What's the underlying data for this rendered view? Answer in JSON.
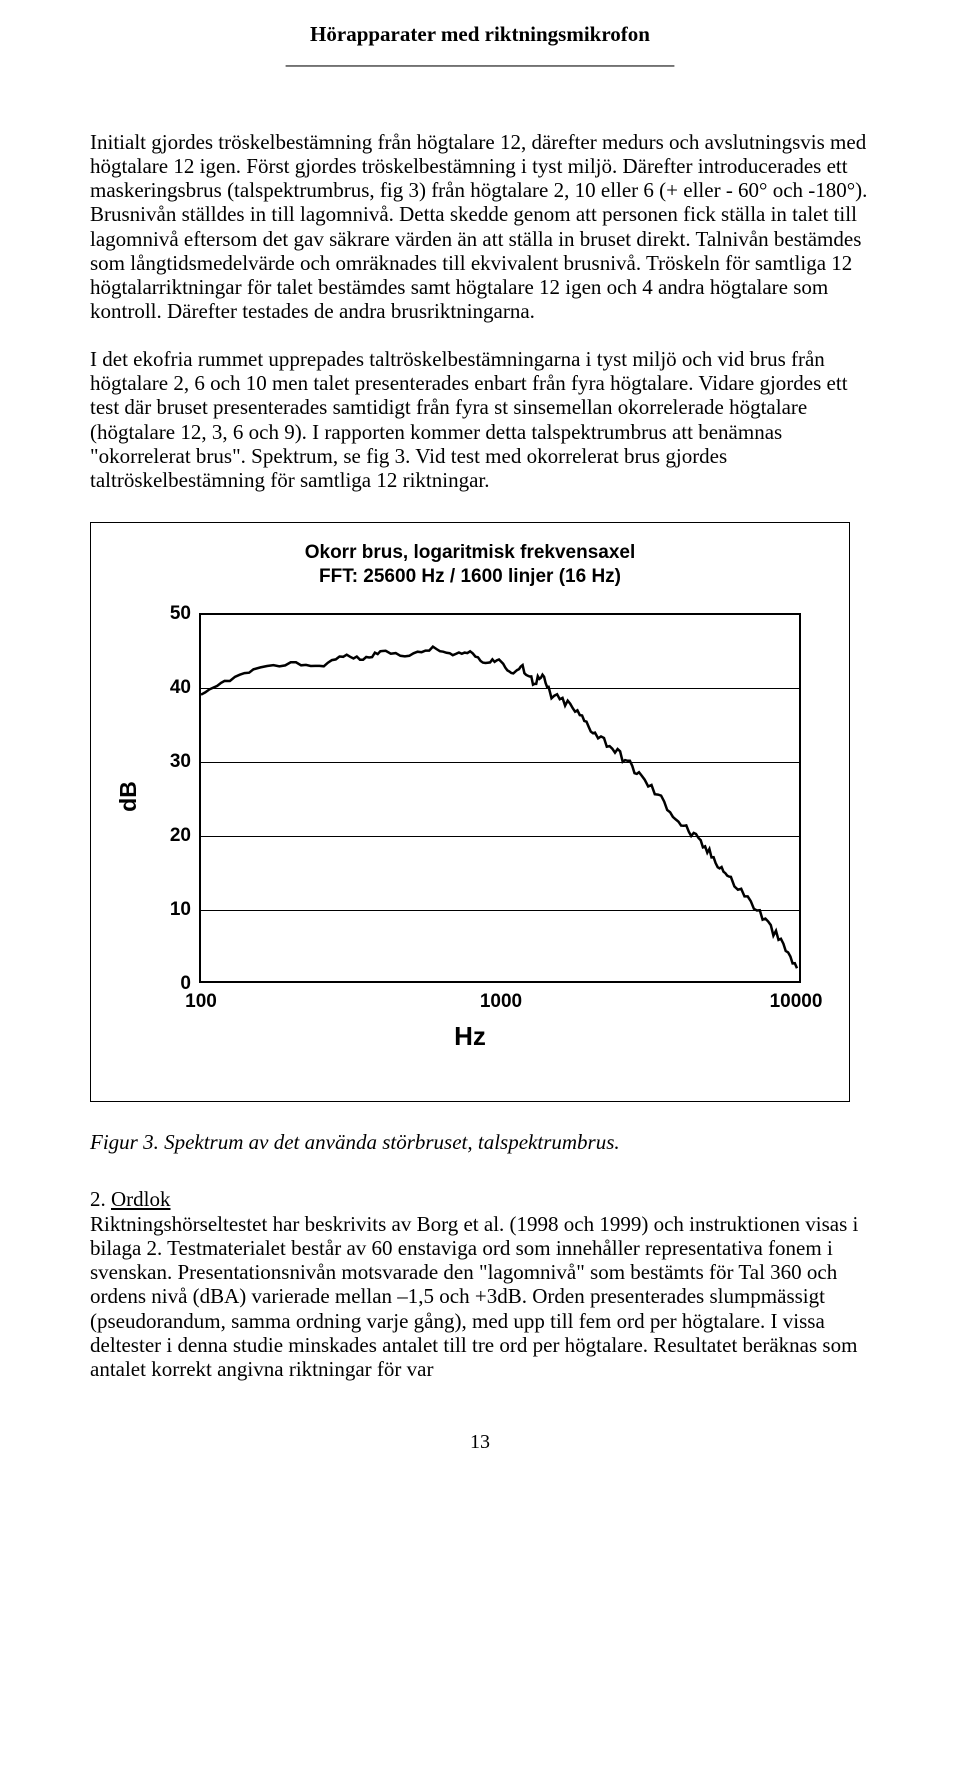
{
  "header": {
    "title": "Hörapparater med riktningsmikrofon",
    "rule": "_____________________________________"
  },
  "para1": "Initialt gjordes tröskelbestämning från högtalare 12, därefter medurs och avslutningsvis med högtalare 12 igen. Först gjordes tröskelbestämning i tyst miljö. Därefter introducerades ett maskeringsbrus (talspektrumbrus, fig 3) från högtalare 2, 10 eller 6 (+ eller - 60° och -180°). Brusnivån ställdes in till lagomnivå. Detta skedde genom att personen fick ställa in talet till lagomnivå eftersom det gav säkrare värden än att ställa in bruset direkt. Talnivån bestämdes som långtidsmedelvärde och omräknades till ekvivalent brusnivå. Tröskeln för samtliga 12 högtalarriktningar för talet bestämdes samt högtalare 12 igen och 4 andra högtalare som kontroll. Därefter testades de andra brusriktningarna.",
  "para2": "I det ekofria rummet upprepades taltröskelbestämningarna i tyst miljö och vid brus från högtalare 2, 6 och 10 men talet presenterades enbart från fyra högtalare. Vidare gjordes ett test där bruset presenterades samtidigt från fyra st sinsemellan okorrelerade högtalare (högtalare 12, 3, 6 och 9). I rapporten kommer detta talspektrumbrus att benämnas \"okorrelerat brus\". Spektrum, se fig 3. Vid test med okorrelerat brus gjordes taltröskelbestämning för samtliga 12 riktningar.",
  "chart": {
    "type": "line",
    "title_line1": "Okorr brus, logaritmisk frekvensaxel",
    "title_line2": "FFT: 25600 Hz / 1600 linjer (16 Hz)",
    "title_fontsize": 19,
    "ylabel": "dB",
    "xlabel": "Hz",
    "ylim": [
      0,
      50
    ],
    "yticks": [
      0,
      10,
      20,
      30,
      40,
      50
    ],
    "xscale": "log",
    "xlim": [
      100,
      10000
    ],
    "xticks": [
      100,
      1000,
      10000
    ],
    "xtick_labels": [
      "100",
      "1000",
      "10000"
    ],
    "plot_background": "#ffffff",
    "grid_color": "#000000",
    "line_color": "#000000",
    "line_width": 2.5,
    "box_border_color": "#000000",
    "axis_font_family": "Arial",
    "axis_font_weight": "bold",
    "data_points": [
      {
        "hz": 100,
        "db": 39
      },
      {
        "hz": 120,
        "db": 41
      },
      {
        "hz": 150,
        "db": 42.5
      },
      {
        "hz": 200,
        "db": 43.5
      },
      {
        "hz": 250,
        "db": 43
      },
      {
        "hz": 300,
        "db": 44.5
      },
      {
        "hz": 350,
        "db": 44
      },
      {
        "hz": 400,
        "db": 45
      },
      {
        "hz": 500,
        "db": 44.5
      },
      {
        "hz": 600,
        "db": 45.5
      },
      {
        "hz": 700,
        "db": 44.5
      },
      {
        "hz": 800,
        "db": 45
      },
      {
        "hz": 900,
        "db": 43.5
      },
      {
        "hz": 1000,
        "db": 44
      },
      {
        "hz": 1100,
        "db": 42
      },
      {
        "hz": 1200,
        "db": 43
      },
      {
        "hz": 1300,
        "db": 41
      },
      {
        "hz": 1400,
        "db": 41.5
      },
      {
        "hz": 1500,
        "db": 39
      },
      {
        "hz": 1700,
        "db": 38
      },
      {
        "hz": 1900,
        "db": 36
      },
      {
        "hz": 2100,
        "db": 34
      },
      {
        "hz": 2400,
        "db": 32
      },
      {
        "hz": 2700,
        "db": 30
      },
      {
        "hz": 3000,
        "db": 28
      },
      {
        "hz": 3500,
        "db": 25
      },
      {
        "hz": 4000,
        "db": 22
      },
      {
        "hz": 4500,
        "db": 20
      },
      {
        "hz": 5000,
        "db": 18
      },
      {
        "hz": 5500,
        "db": 16
      },
      {
        "hz": 6000,
        "db": 14
      },
      {
        "hz": 7000,
        "db": 11
      },
      {
        "hz": 8000,
        "db": 8
      },
      {
        "hz": 9000,
        "db": 5
      },
      {
        "hz": 10000,
        "db": 2
      }
    ],
    "noise_amplitude_db": 0.8
  },
  "caption": "Figur 3. Spektrum av det använda störbruset, talspektrumbrus.",
  "section2": {
    "num": "2. ",
    "title": "Ordlok",
    "body": "Riktningshörseltestet har beskrivits av Borg et al. (1998 och 1999) och instruktionen visas i bilaga 2. Testmaterialet består av 60 enstaviga ord som innehåller representativa fonem i svenskan. Presentationsnivån motsvarade den \"lagomnivå\" som bestämts för Tal 360 och ordens nivå (dBA) varierade mellan –1,5 och +3dB. Orden presenterades slumpmässigt (pseudorandum, samma ordning varje gång), med upp till fem ord per högtalare. I vissa deltester i denna studie minskades antalet till tre ord per högtalare. Resultatet beräknas som antalet korrekt angivna riktningar för var"
  },
  "page_number": "13"
}
